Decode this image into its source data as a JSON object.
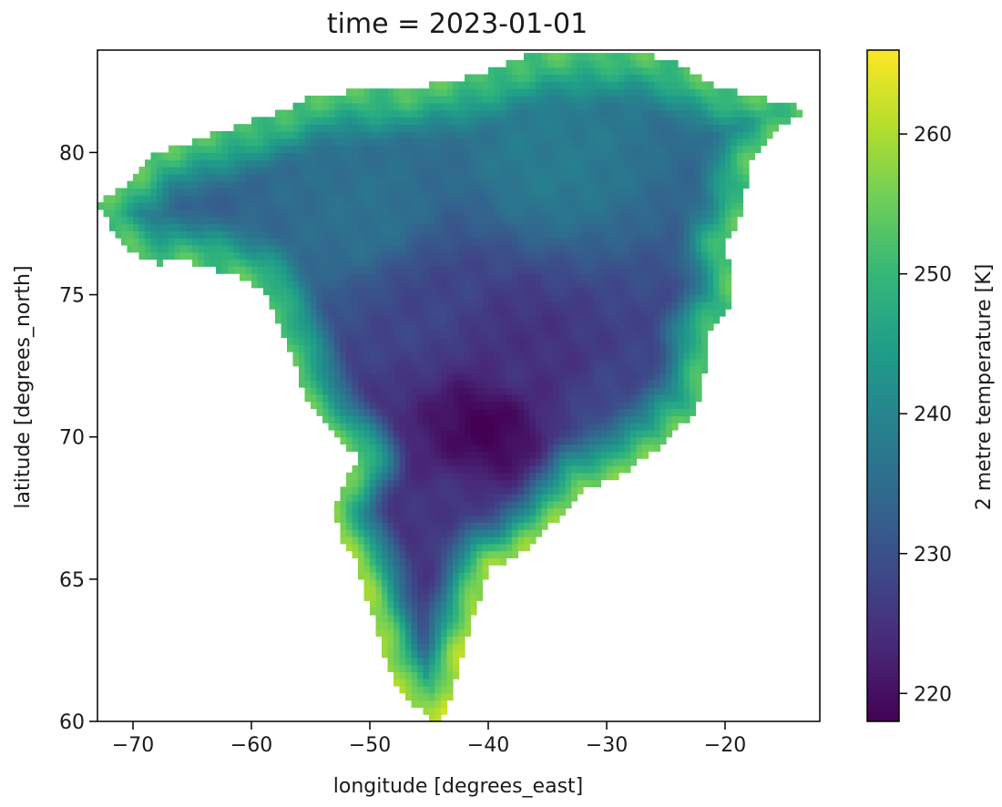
{
  "chart_data": {
    "type": "heatmap",
    "title": "time = 2023-01-01",
    "xlabel": "longitude [degrees_east]",
    "ylabel": "latitude [degrees_north]",
    "xlim": [
      -73,
      -12
    ],
    "ylim": [
      60,
      83.6
    ],
    "xticks": [
      -70,
      -60,
      -50,
      -40,
      -30,
      -20
    ],
    "xtick_labels": [
      "−70",
      "−60",
      "−50",
      "−40",
      "−30",
      "−20"
    ],
    "yticks": [
      60,
      65,
      70,
      75,
      80
    ],
    "ytick_labels": [
      "60",
      "65",
      "70",
      "75",
      "80"
    ],
    "colorbar": {
      "label": "2 metre temperature [K]",
      "colormap": "viridis",
      "range": [
        218,
        266
      ],
      "ticks": [
        220,
        230,
        240,
        250,
        260
      ],
      "tick_labels": [
        "220",
        "230",
        "240",
        "250",
        "260"
      ]
    },
    "colormap_stops": [
      "#440154",
      "#482878",
      "#3e4989",
      "#31688e",
      "#26828e",
      "#1f9e89",
      "#35b779",
      "#6ece58",
      "#b5de2b",
      "#fde725"
    ],
    "grid_resolution_deg": [
      0.5,
      0.25
    ],
    "land_outline": [
      [
        -73,
        78.2
      ],
      [
        -70,
        79
      ],
      [
        -68,
        80
      ],
      [
        -62,
        80.8
      ],
      [
        -58,
        81.4
      ],
      [
        -54,
        82.1
      ],
      [
        -47,
        82.2
      ],
      [
        -42,
        82.6
      ],
      [
        -36,
        83.5
      ],
      [
        -28,
        83.6
      ],
      [
        -24,
        83.1
      ],
      [
        -21,
        82.4
      ],
      [
        -17,
        81.9
      ],
      [
        -13,
        81.5
      ],
      [
        -16,
        80.7
      ],
      [
        -18,
        79.6
      ],
      [
        -18.5,
        77.8
      ],
      [
        -20,
        76.8
      ],
      [
        -19.5,
        75.8
      ],
      [
        -19.5,
        74.6
      ],
      [
        -21.5,
        73.6
      ],
      [
        -21.5,
        72.8
      ],
      [
        -22.5,
        70.8
      ],
      [
        -24.5,
        70.3
      ],
      [
        -25,
        69.8
      ],
      [
        -27,
        69.3
      ],
      [
        -29,
        68.6
      ],
      [
        -32,
        68.2
      ],
      [
        -34.5,
        67
      ],
      [
        -37.5,
        65.8
      ],
      [
        -40,
        65.4
      ],
      [
        -41,
        64
      ],
      [
        -42.5,
        61.9
      ],
      [
        -43.5,
        60.4
      ],
      [
        -44.5,
        59.9
      ],
      [
        -45.5,
        60.4
      ],
      [
        -47,
        60.8
      ],
      [
        -48.5,
        61.9
      ],
      [
        -49.5,
        63.3
      ],
      [
        -50.5,
        64.7
      ],
      [
        -51,
        65.5
      ],
      [
        -52.5,
        66.5
      ],
      [
        -53,
        67.6
      ],
      [
        -52,
        68.6
      ],
      [
        -51,
        69.3
      ],
      [
        -52.5,
        69.8
      ],
      [
        -54,
        70.5
      ],
      [
        -55.5,
        71.3
      ],
      [
        -56,
        72.3
      ],
      [
        -57.5,
        73.8
      ],
      [
        -59,
        75.2
      ],
      [
        -62,
        75.8
      ],
      [
        -66,
        76.2
      ],
      [
        -68,
        76.1
      ],
      [
        -70,
        76.5
      ],
      [
        -72,
        77.5
      ]
    ],
    "cold_core": {
      "lon": -40,
      "lat": 70.5,
      "value": 218
    },
    "temperature_anchors": [
      {
        "lon": -40,
        "lat": 70.5,
        "value": 218
      },
      {
        "lon": -38,
        "lat": 72.5,
        "value": 225
      },
      {
        "lon": -45,
        "lat": 74.5,
        "value": 228
      },
      {
        "lon": -42,
        "lat": 67,
        "value": 226
      },
      {
        "lon": -50,
        "lat": 78,
        "value": 236
      },
      {
        "lon": -30,
        "lat": 69.5,
        "value": 230
      },
      {
        "lon": -35,
        "lat": 80,
        "value": 238
      }
    ]
  }
}
